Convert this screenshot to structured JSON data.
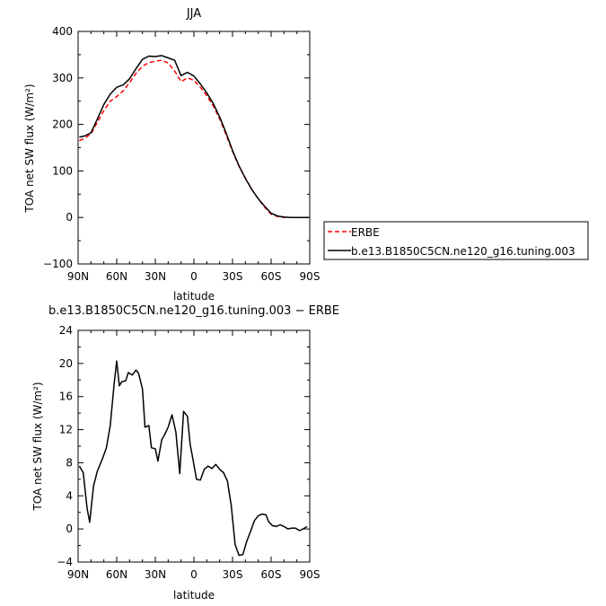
{
  "chart_data": [
    {
      "type": "line",
      "title": "JJA",
      "xlabel": "latitude",
      "ylabel": "TOA net SW flux (W/m²)",
      "xlim": [
        90,
        -90
      ],
      "ylim": [
        -100,
        400
      ],
      "xticks": [
        90,
        60,
        30,
        0,
        -30,
        -60,
        -90
      ],
      "xticklabels": [
        "90N",
        "60N",
        "30N",
        "0",
        "30S",
        "60S",
        "90S"
      ],
      "yticks": [
        -100,
        0,
        100,
        200,
        300,
        400
      ],
      "yticklabels": [
        "−100",
        "0",
        "100",
        "200",
        "300",
        "400"
      ],
      "legend_position": "right",
      "series": [
        {
          "name": "ERBE",
          "color": "#ff0000",
          "dash": "dashed",
          "x": [
            89,
            85,
            80,
            75,
            70,
            65,
            60,
            55,
            50,
            45,
            40,
            35,
            30,
            25,
            20,
            15,
            10,
            5,
            0,
            -5,
            -10,
            -15,
            -20,
            -25,
            -30,
            -35,
            -40,
            -45,
            -50,
            -55,
            -60,
            -65,
            -70,
            -75,
            -80,
            -85,
            -89
          ],
          "y": [
            165,
            170,
            180,
            205,
            230,
            250,
            260,
            272,
            290,
            310,
            325,
            333,
            336,
            338,
            332,
            315,
            292,
            300,
            295,
            280,
            262,
            240,
            212,
            178,
            142,
            110,
            85,
            60,
            40,
            22,
            7,
            2,
            0,
            0,
            0,
            0,
            0
          ]
        },
        {
          "name": "b.e13.B1850C5CN.ne120_g16.tuning.003",
          "color": "#000000",
          "dash": "solid",
          "x": [
            89,
            85,
            80,
            75,
            70,
            65,
            60,
            55,
            50,
            45,
            40,
            35,
            30,
            25,
            20,
            15,
            10,
            5,
            0,
            -5,
            -10,
            -15,
            -20,
            -25,
            -30,
            -35,
            -40,
            -45,
            -50,
            -55,
            -60,
            -65,
            -70,
            -75,
            -80,
            -85,
            -89
          ],
          "y": [
            173,
            175,
            182,
            212,
            243,
            265,
            280,
            285,
            298,
            320,
            340,
            347,
            346,
            348,
            343,
            338,
            305,
            312,
            304,
            287,
            268,
            245,
            216,
            182,
            144,
            111,
            84,
            60,
            40,
            24,
            9,
            3,
            1,
            0,
            0,
            0,
            0
          ]
        }
      ]
    },
    {
      "type": "line",
      "title": "b.e13.B1850C5CN.ne120_g16.tuning.003 − ERBE",
      "xlabel": "latitude",
      "ylabel": "TOA net SW flux (W/m²)",
      "xlim": [
        90,
        -90
      ],
      "ylim": [
        -4,
        24
      ],
      "xticks": [
        90,
        60,
        30,
        0,
        -30,
        -60,
        -90
      ],
      "xticklabels": [
        "90N",
        "60N",
        "30N",
        "0",
        "30S",
        "60S",
        "90S"
      ],
      "yticks": [
        -4,
        0,
        4,
        8,
        12,
        16,
        20,
        24
      ],
      "yticklabels": [
        "−4",
        "0",
        "4",
        "8",
        "12",
        "16",
        "20",
        "24"
      ],
      "series": [
        {
          "color": "#000000",
          "dash": "solid",
          "x": [
            89,
            86,
            83,
            81,
            78,
            75,
            71,
            68,
            65,
            62,
            60,
            58,
            56,
            53,
            51,
            48,
            45,
            43,
            40,
            38,
            35,
            33,
            30,
            28,
            25,
            23,
            20,
            17,
            14,
            11,
            8,
            5,
            3,
            1,
            -2,
            -5,
            -8,
            -11,
            -14,
            -17,
            -20,
            -23,
            -26,
            -29,
            -32,
            -35,
            -38,
            -41,
            -44,
            -47,
            -50,
            -53,
            -56,
            -58,
            -61,
            -64,
            -67,
            -70,
            -73,
            -76,
            -79,
            -82,
            -85,
            -88
          ],
          "y": [
            7.6,
            6.8,
            2.5,
            0.8,
            5.2,
            7.0,
            8.5,
            9.8,
            12.5,
            17.5,
            20.3,
            17.3,
            17.8,
            17.9,
            18.9,
            18.6,
            19.2,
            18.8,
            16.9,
            12.3,
            12.5,
            9.8,
            9.7,
            8.2,
            10.8,
            11.3,
            12.3,
            13.8,
            11.7,
            6.7,
            14.2,
            13.6,
            10.3,
            8.6,
            6.0,
            5.9,
            7.2,
            7.6,
            7.3,
            7.8,
            7.2,
            6.8,
            5.8,
            2.8,
            -1.9,
            -3.2,
            -3.1,
            -1.5,
            -0.3,
            1.0,
            1.6,
            1.8,
            1.7,
            0.9,
            0.4,
            0.3,
            0.5,
            0.3,
            0.0,
            0.1,
            0.1,
            -0.2,
            0.0,
            0.3
          ]
        }
      ]
    }
  ]
}
